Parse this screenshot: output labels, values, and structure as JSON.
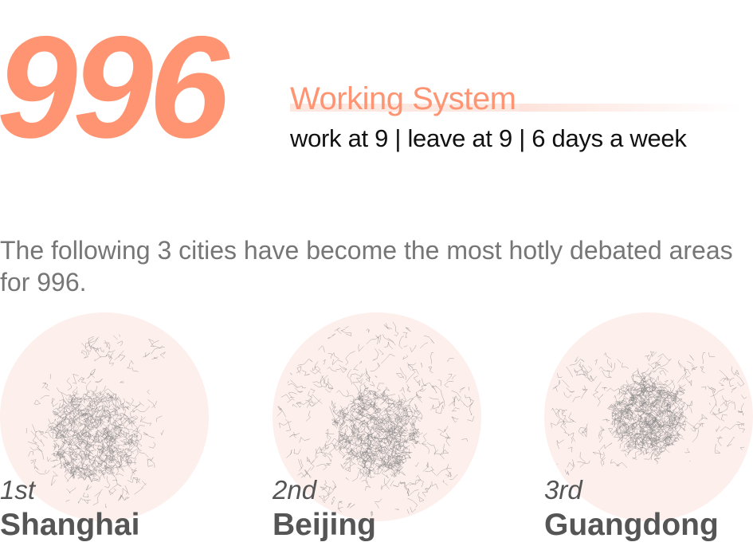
{
  "headline": {
    "number": "996",
    "title": "Working System",
    "subtitle": "work at 9 | leave at 9 | 6 days a week"
  },
  "intro": "The following 3 cities have become the most hotly debated areas for 996.",
  "cities": [
    {
      "rank": "1st",
      "name": "Shanghai"
    },
    {
      "rank": "2nd",
      "name": "Beijing"
    },
    {
      "rank": "3rd",
      "name": "Guangdong"
    }
  ],
  "colors": {
    "accent": "#ff9473",
    "text_dark": "#111111",
    "text_gray": "#767676",
    "city_label": "#555555",
    "circle_bg": "#fdefec",
    "road_lines": "#8a8a8a"
  }
}
